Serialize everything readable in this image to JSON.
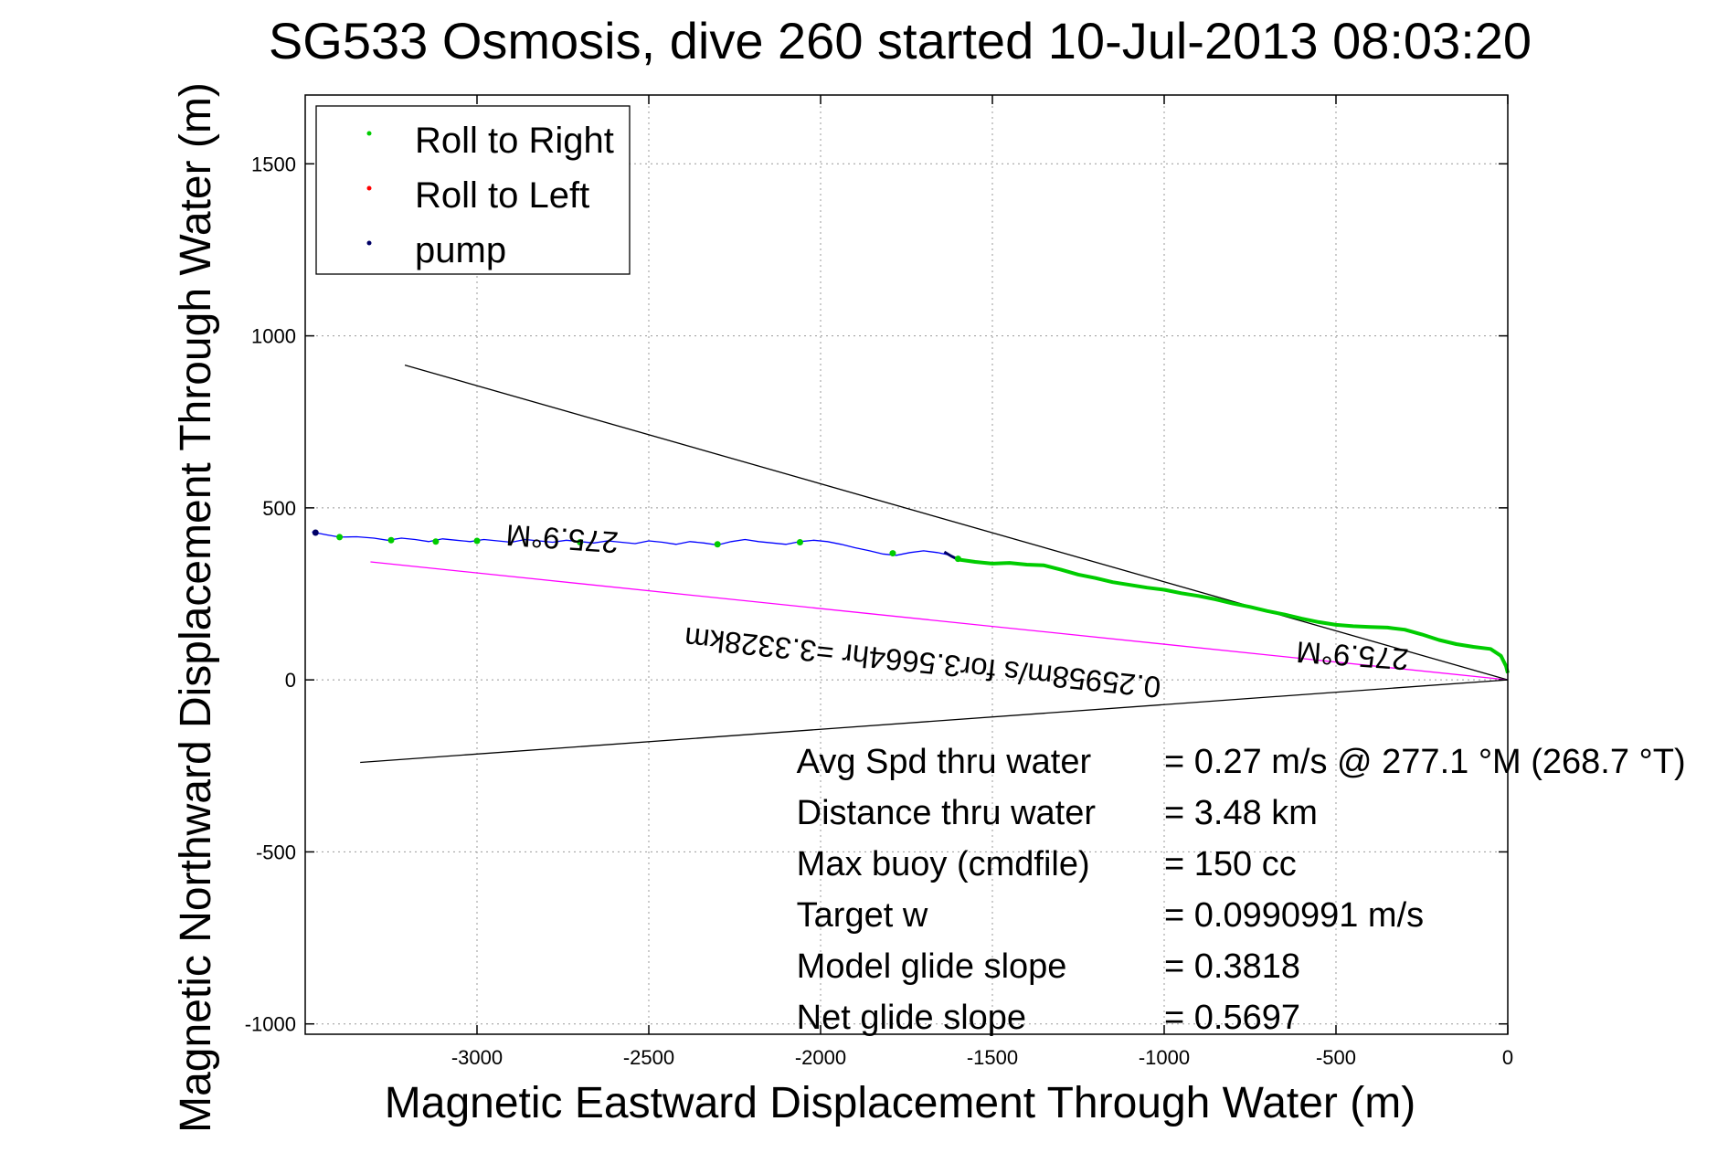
{
  "chart_data": {
    "type": "line",
    "title": "SG533 Osmosis, dive 260 started 10-Jul-2013 08:03:20",
    "xlabel": "Magnetic Eastward Displacement Through Water (m)",
    "ylabel": "Magnetic Northward Displacement Through Water (m)",
    "xlim": [
      -3500,
      0
    ],
    "ylim": [
      -1030,
      1700
    ],
    "x_ticks": [
      -3000,
      -2500,
      -2000,
      -1500,
      -1000,
      -500,
      0
    ],
    "y_ticks": [
      -1000,
      -500,
      0,
      500,
      1000,
      1500
    ],
    "grid": true,
    "legend_position": "top-left",
    "legend": [
      {
        "label": "Roll to Right",
        "color": "#00cc00"
      },
      {
        "label": "Roll to Left",
        "color": "#ff0000"
      },
      {
        "label": "pump",
        "color": "#000066"
      }
    ],
    "series": [
      {
        "type": "line",
        "color": "#0000ff",
        "x": [
          -3480,
          -3440,
          -3400,
          -3350,
          -3300,
          -3260,
          -3220,
          -3180,
          -3140,
          -3100,
          -3060,
          -3020,
          -2980,
          -2940,
          -2900,
          -2860,
          -2820,
          -2780,
          -2740,
          -2700,
          -2660,
          -2620,
          -2580,
          -2540,
          -2500,
          -2460,
          -2420,
          -2380,
          -2340,
          -2300,
          -2260,
          -2220,
          -2180,
          -2140,
          -2100,
          -2060,
          -2020,
          -1980,
          -1940,
          -1900,
          -1860,
          -1820,
          -1780,
          -1740,
          -1700,
          -1660,
          -1630,
          -1610
        ],
        "y": [
          430,
          422,
          415,
          416,
          412,
          406,
          412,
          408,
          402,
          410,
          406,
          402,
          408,
          404,
          400,
          408,
          404,
          400,
          406,
          402,
          398,
          404,
          400,
          396,
          404,
          400,
          394,
          402,
          398,
          392,
          402,
          408,
          402,
          398,
          394,
          402,
          406,
          402,
          394,
          384,
          376,
          366,
          362,
          370,
          375,
          370,
          364,
          354
        ]
      },
      {
        "type": "line",
        "color": "#00cc00",
        "x": [
          -1600,
          -1550,
          -1500,
          -1450,
          -1400,
          -1350,
          -1300,
          -1250,
          -1200,
          -1150,
          -1100,
          -1050,
          -1000,
          -950,
          -900,
          -850,
          -800,
          -750,
          -700,
          -650,
          -600,
          -550,
          -500,
          -450,
          -400,
          -350,
          -300,
          -250,
          -200,
          -150,
          -100,
          -50,
          -20,
          -5,
          0
        ],
        "y": [
          350,
          343,
          338,
          340,
          335,
          333,
          320,
          306,
          296,
          284,
          276,
          268,
          262,
          252,
          244,
          234,
          222,
          212,
          200,
          190,
          178,
          168,
          160,
          156,
          154,
          152,
          146,
          132,
          116,
          104,
          96,
          90,
          70,
          40,
          20
        ]
      },
      {
        "type": "line",
        "name": "pump",
        "color": "#000066",
        "x": [
          -1640,
          -1620,
          -1600
        ],
        "y": [
          372,
          360,
          350
        ]
      }
    ],
    "roll_right_markers": {
      "color": "#00cc00",
      "x": [
        -3400,
        -3250,
        -3120,
        -3000,
        -2700,
        -2300,
        -2060,
        -1790,
        -1600
      ],
      "y": [
        415,
        406,
        402,
        404,
        400,
        394,
        400,
        368,
        352
      ]
    },
    "pump_markers": {
      "color": "#000066",
      "x": [
        -3470
      ],
      "y": [
        428
      ]
    },
    "reference_lines": [
      {
        "color": "#000000",
        "x": [
          -3210,
          0
        ],
        "y": [
          915,
          0
        ]
      },
      {
        "color": "#000000",
        "x": [
          -3340,
          0
        ],
        "y": [
          -240,
          0
        ]
      },
      {
        "color": "#ff00ff",
        "x": [
          -3310,
          0
        ],
        "y": [
          343,
          0
        ]
      }
    ],
    "annotations": [
      {
        "text": "275.9°M",
        "x": -2750,
        "y": 440,
        "rotate": 184,
        "font": 33
      },
      {
        "text": "0.25958m/s for3.5664hr =3.3328km",
        "x": -1700,
        "y": 80,
        "rotate": 186,
        "font": 33
      },
      {
        "text": "275.9°M",
        "x": -450,
        "y": 100,
        "rotate": 184,
        "font": 33
      }
    ],
    "stats": [
      {
        "label": "Avg Spd thru water",
        "value": "=  0.27 m/s @ 277.1 °M (268.7 °T)"
      },
      {
        "label": "Distance thru water",
        "value": "=  3.48 km"
      },
      {
        "label": "Max buoy (cmdfile)",
        "value": "= 150 cc"
      },
      {
        "label": "Target w",
        "value": "= 0.0990991 m/s"
      },
      {
        "label": "Model glide slope",
        "value": "= 0.3818"
      },
      {
        "label": "Net glide slope",
        "value": "= 0.5697"
      }
    ]
  }
}
